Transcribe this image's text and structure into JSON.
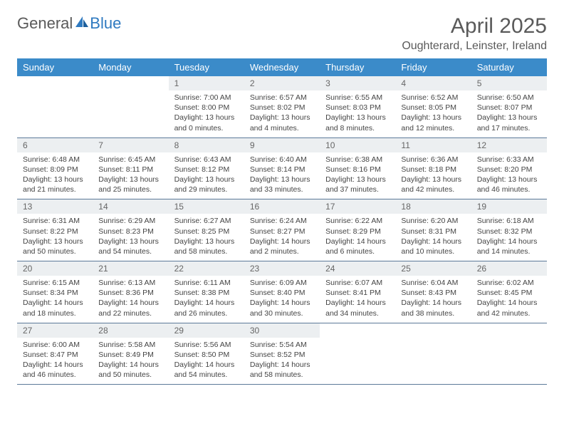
{
  "brand": {
    "part1": "General",
    "part2": "Blue"
  },
  "title": "April 2025",
  "location": "Oughterard, Leinster, Ireland",
  "colors": {
    "header_bg": "#3b8bc9",
    "header_fg": "#ffffff",
    "daynum_bg": "#eceff1",
    "cell_border": "#5c7a99",
    "text": "#444444",
    "title_color": "#5a5a5a"
  },
  "typography": {
    "title_fontsize": 30,
    "location_fontsize": 16,
    "dow_fontsize": 13,
    "body_fontsize": 10.5
  },
  "dow": [
    "Sunday",
    "Monday",
    "Tuesday",
    "Wednesday",
    "Thursday",
    "Friday",
    "Saturday"
  ],
  "weeks": [
    [
      {
        "empty": true
      },
      {
        "empty": true
      },
      {
        "day": "1",
        "sunrise": "7:00 AM",
        "sunset": "8:00 PM",
        "daylight": "13 hours and 0 minutes."
      },
      {
        "day": "2",
        "sunrise": "6:57 AM",
        "sunset": "8:02 PM",
        "daylight": "13 hours and 4 minutes."
      },
      {
        "day": "3",
        "sunrise": "6:55 AM",
        "sunset": "8:03 PM",
        "daylight": "13 hours and 8 minutes."
      },
      {
        "day": "4",
        "sunrise": "6:52 AM",
        "sunset": "8:05 PM",
        "daylight": "13 hours and 12 minutes."
      },
      {
        "day": "5",
        "sunrise": "6:50 AM",
        "sunset": "8:07 PM",
        "daylight": "13 hours and 17 minutes."
      }
    ],
    [
      {
        "day": "6",
        "sunrise": "6:48 AM",
        "sunset": "8:09 PM",
        "daylight": "13 hours and 21 minutes."
      },
      {
        "day": "7",
        "sunrise": "6:45 AM",
        "sunset": "8:11 PM",
        "daylight": "13 hours and 25 minutes."
      },
      {
        "day": "8",
        "sunrise": "6:43 AM",
        "sunset": "8:12 PM",
        "daylight": "13 hours and 29 minutes."
      },
      {
        "day": "9",
        "sunrise": "6:40 AM",
        "sunset": "8:14 PM",
        "daylight": "13 hours and 33 minutes."
      },
      {
        "day": "10",
        "sunrise": "6:38 AM",
        "sunset": "8:16 PM",
        "daylight": "13 hours and 37 minutes."
      },
      {
        "day": "11",
        "sunrise": "6:36 AM",
        "sunset": "8:18 PM",
        "daylight": "13 hours and 42 minutes."
      },
      {
        "day": "12",
        "sunrise": "6:33 AM",
        "sunset": "8:20 PM",
        "daylight": "13 hours and 46 minutes."
      }
    ],
    [
      {
        "day": "13",
        "sunrise": "6:31 AM",
        "sunset": "8:22 PM",
        "daylight": "13 hours and 50 minutes."
      },
      {
        "day": "14",
        "sunrise": "6:29 AM",
        "sunset": "8:23 PM",
        "daylight": "13 hours and 54 minutes."
      },
      {
        "day": "15",
        "sunrise": "6:27 AM",
        "sunset": "8:25 PM",
        "daylight": "13 hours and 58 minutes."
      },
      {
        "day": "16",
        "sunrise": "6:24 AM",
        "sunset": "8:27 PM",
        "daylight": "14 hours and 2 minutes."
      },
      {
        "day": "17",
        "sunrise": "6:22 AM",
        "sunset": "8:29 PM",
        "daylight": "14 hours and 6 minutes."
      },
      {
        "day": "18",
        "sunrise": "6:20 AM",
        "sunset": "8:31 PM",
        "daylight": "14 hours and 10 minutes."
      },
      {
        "day": "19",
        "sunrise": "6:18 AM",
        "sunset": "8:32 PM",
        "daylight": "14 hours and 14 minutes."
      }
    ],
    [
      {
        "day": "20",
        "sunrise": "6:15 AM",
        "sunset": "8:34 PM",
        "daylight": "14 hours and 18 minutes."
      },
      {
        "day": "21",
        "sunrise": "6:13 AM",
        "sunset": "8:36 PM",
        "daylight": "14 hours and 22 minutes."
      },
      {
        "day": "22",
        "sunrise": "6:11 AM",
        "sunset": "8:38 PM",
        "daylight": "14 hours and 26 minutes."
      },
      {
        "day": "23",
        "sunrise": "6:09 AM",
        "sunset": "8:40 PM",
        "daylight": "14 hours and 30 minutes."
      },
      {
        "day": "24",
        "sunrise": "6:07 AM",
        "sunset": "8:41 PM",
        "daylight": "14 hours and 34 minutes."
      },
      {
        "day": "25",
        "sunrise": "6:04 AM",
        "sunset": "8:43 PM",
        "daylight": "14 hours and 38 minutes."
      },
      {
        "day": "26",
        "sunrise": "6:02 AM",
        "sunset": "8:45 PM",
        "daylight": "14 hours and 42 minutes."
      }
    ],
    [
      {
        "day": "27",
        "sunrise": "6:00 AM",
        "sunset": "8:47 PM",
        "daylight": "14 hours and 46 minutes."
      },
      {
        "day": "28",
        "sunrise": "5:58 AM",
        "sunset": "8:49 PM",
        "daylight": "14 hours and 50 minutes."
      },
      {
        "day": "29",
        "sunrise": "5:56 AM",
        "sunset": "8:50 PM",
        "daylight": "14 hours and 54 minutes."
      },
      {
        "day": "30",
        "sunrise": "5:54 AM",
        "sunset": "8:52 PM",
        "daylight": "14 hours and 58 minutes."
      },
      {
        "empty": true
      },
      {
        "empty": true
      },
      {
        "empty": true
      }
    ]
  ]
}
